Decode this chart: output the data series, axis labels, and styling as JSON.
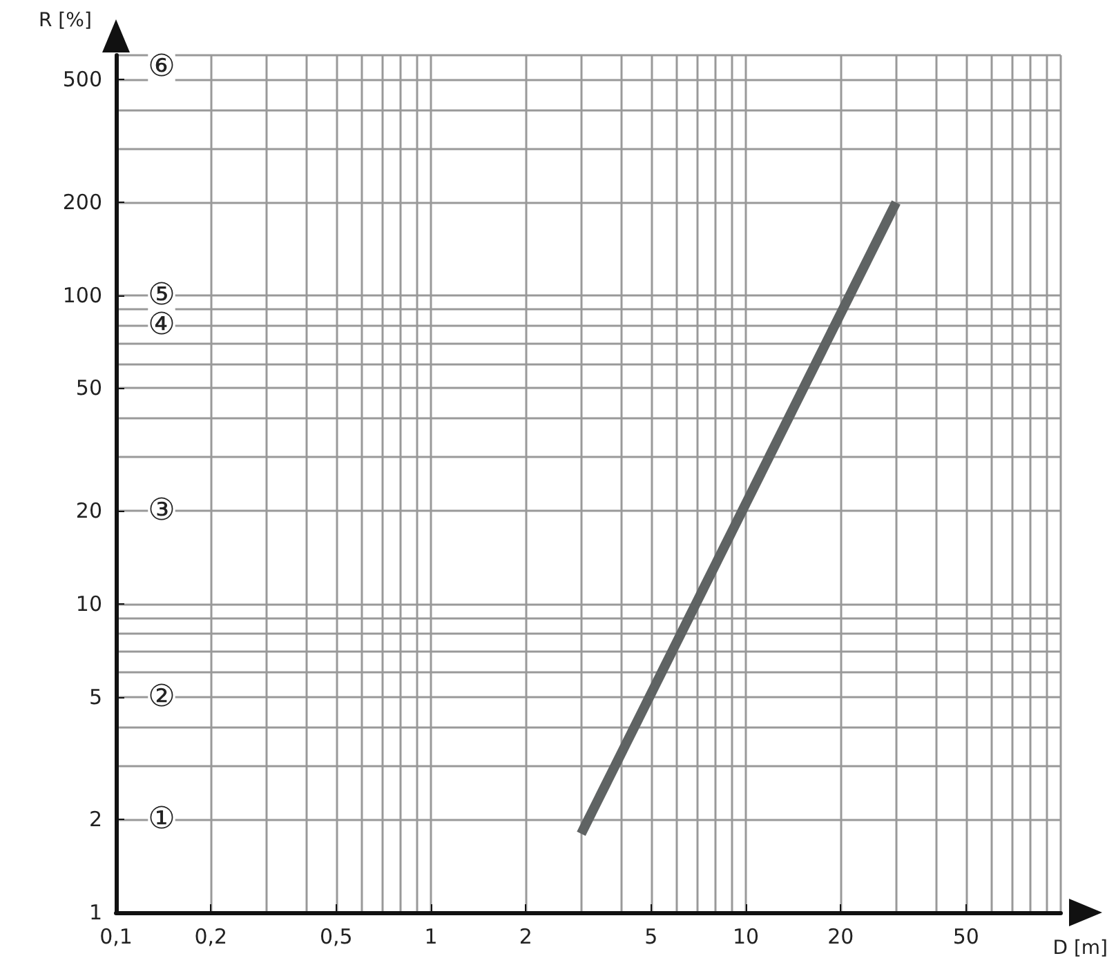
{
  "chart_data": {
    "type": "line",
    "xlabel": "D [m]",
    "ylabel": "R [%]",
    "x": [
      3,
      30
    ],
    "series": [
      {
        "color": "#5f6363",
        "values": [
          1.8,
          200
        ]
      }
    ],
    "log": "xy",
    "xlim": [
      0.1,
      100
    ],
    "ylim": [
      1,
      600
    ],
    "xticks": [
      {
        "value": 0.1,
        "label": "0,1"
      },
      {
        "value": 0.2,
        "label": "0,2"
      },
      {
        "value": 0.5,
        "label": "0,5"
      },
      1,
      2,
      5,
      10,
      20,
      50
    ],
    "yticks": [
      1,
      2,
      5,
      10,
      20,
      50,
      100,
      200,
      500
    ],
    "grid": true,
    "marker": "none",
    "line_style": "solid",
    "annotations": [
      {
        "text": "①",
        "y": 2
      },
      {
        "text": "②",
        "y": 5
      },
      {
        "text": "③",
        "y": 20
      },
      {
        "text": "④",
        "y": 80
      },
      {
        "text": "⑤",
        "y": 100
      },
      {
        "text": "⑥",
        "y": 550
      }
    ]
  }
}
